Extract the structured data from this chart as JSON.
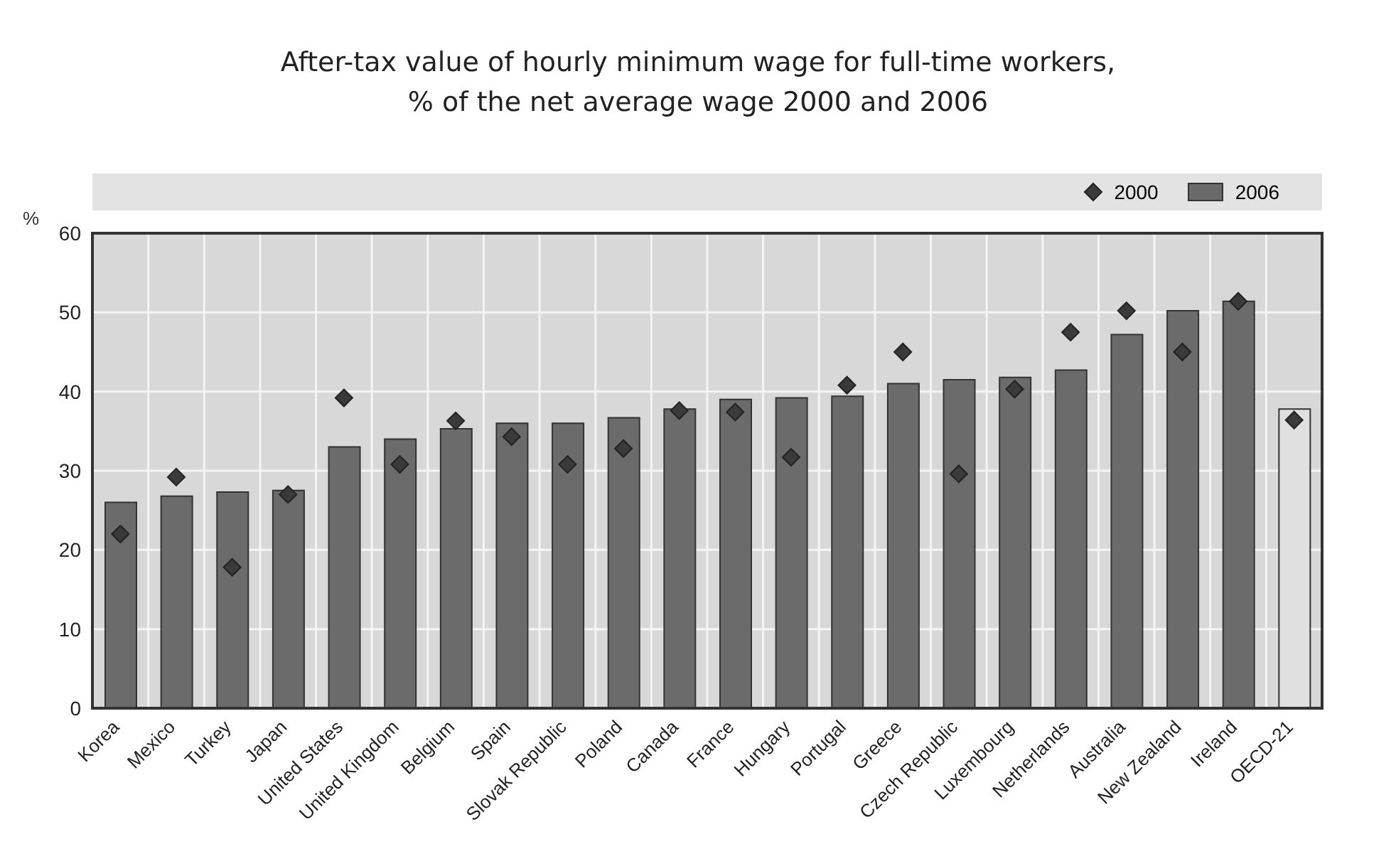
{
  "chart_data": {
    "type": "bar",
    "title": "After-tax value of hourly minimum wage for full-time workers, % of the net average wage 2000 and 2006",
    "ylabel": "%",
    "categories": [
      "Korea",
      "Mexico",
      "Turkey",
      "Japan",
      "United States",
      "United Kingdom",
      "Belgium",
      "Spain",
      "Slovak Republic",
      "Poland",
      "Canada",
      "France",
      "Hungary",
      "Portugal",
      "Greece",
      "Czech Republic",
      "Luxembourg",
      "Netherlands",
      "Australia",
      "New Zealand",
      "Ireland",
      "OECD-21"
    ],
    "series": [
      {
        "name": "2000",
        "type": "scatter",
        "marker": "diamond",
        "color": "#3a3a3a",
        "x": [
          "Korea",
          "Mexico",
          "Turkey",
          "Japan",
          "United States",
          "United Kingdom",
          "Belgium",
          "Spain",
          "Slovak Republic",
          "Poland",
          "Canada",
          "France",
          "Hungary",
          "Portugal",
          "Greece",
          "Czech Republic",
          "Luxembourg",
          "Netherlands",
          "Australia",
          "New Zealand",
          "Ireland",
          "OECD-21"
        ],
        "values": [
          22,
          29.2,
          17.8,
          27,
          39.2,
          30.8,
          36.3,
          34.3,
          30.8,
          32.8,
          37.6,
          37.4,
          31.7,
          40.8,
          45,
          29.6,
          40.3,
          47.5,
          50.2,
          45,
          51.4,
          36.4
        ]
      },
      {
        "name": "2006",
        "color": "#6b6b6b",
        "colors": [
          "#6b6b6b",
          "#6b6b6b",
          "#6b6b6b",
          "#6b6b6b",
          "#6b6b6b",
          "#6b6b6b",
          "#6b6b6b",
          "#6b6b6b",
          "#6b6b6b",
          "#6b6b6b",
          "#6b6b6b",
          "#6b6b6b",
          "#6b6b6b",
          "#6b6b6b",
          "#6b6b6b",
          "#6b6b6b",
          "#6b6b6b",
          "#6b6b6b",
          "#6b6b6b",
          "#6b6b6b",
          "#6b6b6b",
          "#e0e0e0"
        ],
        "values": [
          26,
          26.8,
          27.3,
          27.5,
          33,
          34,
          35.3,
          36,
          36,
          36.7,
          37.8,
          39,
          39.2,
          39.4,
          41,
          41.5,
          41.8,
          42.7,
          47.2,
          50.2,
          51.4,
          37.8
        ]
      }
    ],
    "ylim": [
      0,
      60
    ],
    "yticks": [
      0,
      10,
      20,
      30,
      40,
      50,
      60
    ],
    "grid": true,
    "legend": "top right"
  }
}
